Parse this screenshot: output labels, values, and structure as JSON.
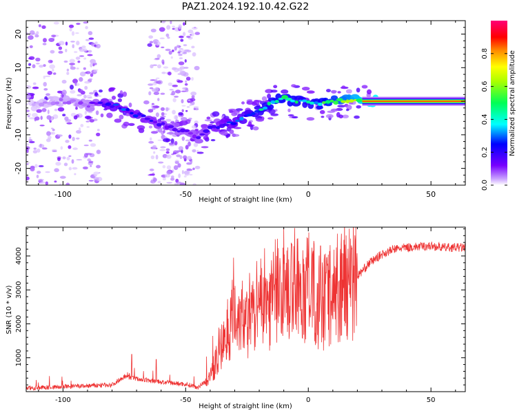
{
  "title": "PAZ1.2024.192.10.42.G22",
  "chart_data": [
    {
      "type": "heatmap",
      "xlabel": "Height of straight line (km)",
      "ylabel": "Frequency (Hz)",
      "xlim": [
        -115,
        64
      ],
      "ylim": [
        -25,
        24
      ],
      "xticks": [
        -100,
        -50,
        0,
        50
      ],
      "yticks": [
        -20,
        -10,
        0,
        10,
        20
      ],
      "colorbar": {
        "label": "Normalized spectral amplitude",
        "range": [
          0,
          1
        ],
        "ticks": [
          "0.0",
          "0.2",
          "0.4",
          "0.6",
          "0.8"
        ],
        "colormap": "gist_rainbow_r"
      },
      "ridge_frequency": {
        "height_km": [
          -110,
          -100,
          -90,
          -80,
          -70,
          -60,
          -50,
          -45,
          -40,
          -30,
          -20,
          -15,
          -10,
          -5,
          0,
          2,
          10,
          20,
          30,
          64
        ],
        "frequency_hz": [
          -1,
          0,
          -1,
          -1,
          -4,
          -7,
          -9,
          -11,
          -8,
          -6,
          -3,
          0,
          1,
          0,
          0,
          -1,
          0,
          0,
          0,
          0
        ]
      },
      "ridge_amplitude": {
        "height_km": [
          -110,
          -90,
          -80,
          -70,
          -60,
          -50,
          -40,
          -30,
          -20,
          -10,
          0,
          2,
          10,
          20,
          30,
          64
        ],
        "amplitude": [
          0.05,
          0.1,
          0.3,
          0.25,
          0.2,
          0.15,
          0.2,
          0.3,
          0.45,
          0.55,
          0.45,
          0.5,
          0.6,
          0.75,
          0.85,
          0.85
        ]
      },
      "noise_bands_km": [
        [
          -115,
          -85
        ],
        [
          -65,
          -45
        ]
      ]
    },
    {
      "type": "line",
      "xlabel": "Height of straight line (km)",
      "ylabel": "SNR (10 * v/v)",
      "xlim": [
        -115,
        64
      ],
      "ylim": [
        0,
        4850
      ],
      "xticks": [
        -100,
        -50,
        0,
        50
      ],
      "yticks": [
        1000,
        2000,
        3000,
        4000
      ],
      "color": "#ee3333",
      "envelope": {
        "height_km": [
          -115,
          -80,
          -75,
          -70,
          -60,
          -50,
          -45,
          -40,
          -35,
          -30,
          -25,
          -20,
          -15,
          -10,
          -5,
          0,
          5,
          10,
          15,
          20,
          25,
          30,
          35,
          40,
          50,
          55,
          64
        ],
        "snr": [
          100,
          200,
          450,
          380,
          280,
          220,
          130,
          420,
          1400,
          2400,
          2000,
          2350,
          2750,
          2900,
          2900,
          3050,
          2600,
          2900,
          3150,
          3400,
          3800,
          4050,
          4200,
          4250,
          4300,
          4250,
          4250
        ]
      },
      "spikes": [
        {
          "height_km": -30.5,
          "snr": 3950
        },
        {
          "height_km": -24,
          "snr": 3500
        },
        {
          "height_km": -21,
          "snr": 3850
        },
        {
          "height_km": -13,
          "snr": 4000
        },
        {
          "height_km": -10,
          "snr": 4850
        },
        {
          "height_km": -8,
          "snr": 3900
        },
        {
          "height_km": 2,
          "snr": 4150
        },
        {
          "height_km": 5,
          "snr": 4300
        },
        {
          "height_km": -72,
          "snr": 1100
        },
        {
          "height_km": -62,
          "snr": 950
        },
        {
          "height_km": 4,
          "snr": 1250
        }
      ]
    }
  ]
}
